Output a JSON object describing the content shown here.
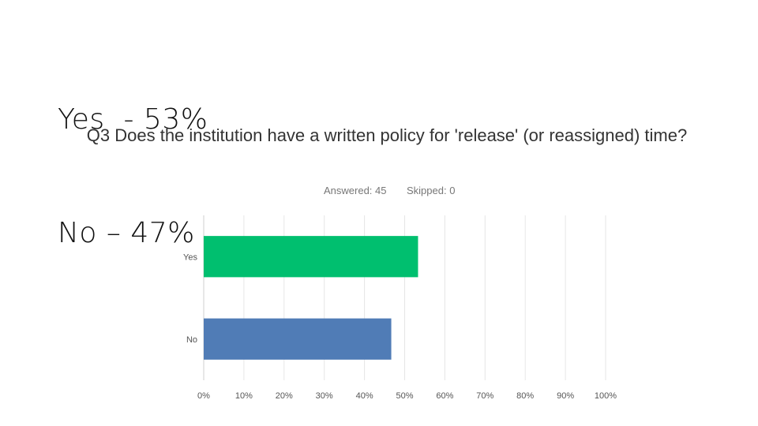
{
  "summary": {
    "line1": "Yes  - 53%",
    "line2": "No – 47%"
  },
  "survey": {
    "question": "Q3 Does the institution have a written policy for  'release' (or reassigned) time?",
    "answered": "Answered: 45",
    "skipped": "Skipped: 0"
  },
  "chart_data": {
    "type": "bar",
    "orientation": "horizontal",
    "title": "Q3 Does the institution have a written policy for  'release' (or reassigned) time?",
    "categories": [
      "Yes",
      "No"
    ],
    "values": [
      53.33,
      46.67
    ],
    "colors": [
      "#00bf6f",
      "#507cb6"
    ],
    "xlim": [
      0,
      100
    ],
    "xticks": [
      "0%",
      "10%",
      "20%",
      "30%",
      "40%",
      "50%",
      "60%",
      "70%",
      "80%",
      "90%",
      "100%"
    ],
    "grid": true,
    "legend": "none"
  }
}
